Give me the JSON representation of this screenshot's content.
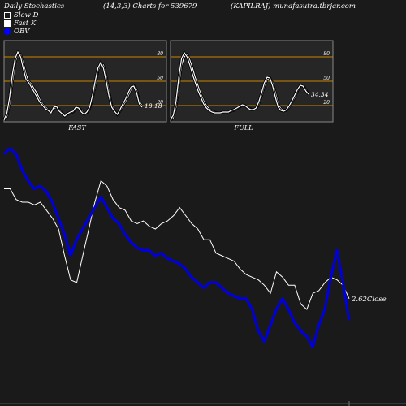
{
  "header": {
    "left": "Daily Stochastics",
    "center": "(14,3,3) Charts for 539679",
    "right": "(KAPILRAJ) munafasutra.tbrjar.com"
  },
  "legend": {
    "slow_d": "Slow  D",
    "fast_k": "Fast K",
    "obv": "OBV"
  },
  "colors": {
    "background": "#1a1a1a",
    "panel_bg": "#262626",
    "grid": "#cc8400",
    "price_line": "#ffffff",
    "obv_line": "#0000dd"
  },
  "chart_data": [
    {
      "type": "line",
      "panel": "fast",
      "label": "FAST",
      "ylim": [
        0,
        100
      ],
      "yticks": [
        20,
        50,
        80
      ],
      "last_value_label": "18.18",
      "series": [
        {
          "values": [
            2,
            6,
            22,
            48,
            72,
            85,
            83,
            72,
            58,
            50,
            46,
            40,
            35,
            27,
            22,
            18,
            15,
            12,
            16,
            18,
            15,
            11,
            8,
            9,
            11,
            12,
            16,
            18,
            14,
            10,
            11,
            16,
            28,
            44,
            62,
            72,
            70,
            56,
            38,
            21,
            14,
            9,
            13,
            19,
            25,
            32,
            40,
            45,
            40,
            25,
            20
          ]
        },
        {
          "values": [
            3,
            10,
            30,
            58,
            78,
            86,
            80,
            65,
            52,
            48,
            42,
            36,
            30,
            24,
            20,
            16,
            14,
            11,
            18,
            19,
            13,
            10,
            7,
            10,
            12,
            13,
            18,
            17,
            12,
            9,
            12,
            18,
            32,
            50,
            66,
            73,
            66,
            50,
            32,
            18,
            13,
            9,
            15,
            22,
            28,
            36,
            43,
            44,
            36,
            22,
            18
          ]
        }
      ]
    },
    {
      "type": "line",
      "panel": "full",
      "label": "FULL",
      "ylim": [
        0,
        100
      ],
      "yticks": [
        20,
        50,
        80
      ],
      "last_value_label": "34.34",
      "series": [
        {
          "values": [
            2,
            5,
            18,
            45,
            70,
            80,
            83,
            76,
            66,
            54,
            44,
            34,
            26,
            20,
            16,
            13,
            12,
            11,
            11,
            12,
            12,
            12,
            13,
            14,
            16,
            18,
            20,
            20,
            18,
            16,
            15,
            16,
            22,
            32,
            44,
            52,
            54,
            48,
            36,
            22,
            16,
            14,
            14,
            18,
            24,
            30,
            38,
            44,
            45,
            40,
            34
          ]
        },
        {
          "values": [
            3,
            8,
            25,
            55,
            78,
            85,
            80,
            70,
            58,
            48,
            38,
            30,
            22,
            17,
            14,
            12,
            11,
            11,
            11,
            12,
            12,
            12,
            14,
            15,
            17,
            19,
            21,
            20,
            17,
            15,
            15,
            17,
            25,
            36,
            48,
            55,
            54,
            44,
            30,
            18,
            14,
            13,
            15,
            20,
            26,
            33,
            40,
            45,
            44,
            38,
            34
          ]
        }
      ]
    },
    {
      "type": "line",
      "panel": "price_obv",
      "last_price_label": "2.62",
      "price_label_suffix": "Close",
      "ylim": [
        0,
        100
      ],
      "series": [
        {
          "name": "Close",
          "values": [
            75,
            75,
            71,
            70,
            70,
            69,
            70,
            67,
            64,
            60,
            50,
            41,
            40,
            50,
            60,
            70,
            78,
            76,
            71,
            68,
            67,
            63,
            62,
            63,
            61,
            60,
            62,
            63,
            65,
            68,
            65,
            62,
            60,
            56,
            56,
            51,
            50,
            49,
            48,
            45,
            43,
            42,
            41,
            39,
            36,
            44,
            42,
            39,
            39,
            32,
            30,
            36,
            37,
            40,
            42,
            41,
            39,
            34
          ]
        },
        {
          "name": "OBV",
          "values": [
            88,
            90,
            88,
            82,
            78,
            75,
            76,
            74,
            70,
            64,
            58,
            50,
            56,
            60,
            64,
            68,
            72,
            68,
            64,
            62,
            58,
            55,
            53,
            52,
            52,
            50,
            51,
            49,
            48,
            47,
            45,
            42,
            40,
            38,
            40,
            40,
            38,
            36,
            35,
            34,
            34,
            30,
            22,
            18,
            24,
            30,
            34,
            30,
            25,
            22,
            20,
            16,
            24,
            30,
            42,
            52,
            40,
            26
          ]
        }
      ]
    }
  ]
}
